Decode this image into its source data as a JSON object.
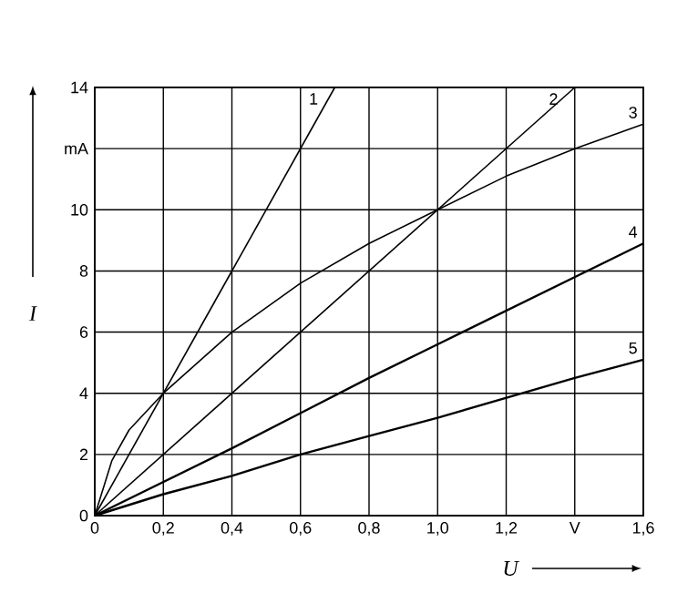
{
  "chart_data": {
    "type": "line",
    "xlabel": "U",
    "ylabel": "I",
    "series": [
      {
        "name": "1",
        "color": "#000000",
        "x": [
          0,
          0.7
        ],
        "values": [
          0,
          14
        ]
      },
      {
        "name": "2",
        "color": "#000000",
        "x": [
          0,
          1.4
        ],
        "values": [
          0,
          14
        ]
      },
      {
        "name": "3",
        "color": "#000000",
        "x": [
          0,
          0.05,
          0.1,
          0.2,
          0.4,
          0.6,
          0.8,
          1.0,
          1.2,
          1.4,
          1.6
        ],
        "values": [
          0,
          1.8,
          2.8,
          4,
          6,
          7.6,
          8.9,
          10,
          11.1,
          12,
          12.8
        ]
      },
      {
        "name": "4",
        "color": "#000000",
        "x": [
          0,
          0.2,
          0.4,
          0.6,
          0.8,
          1.0,
          1.2,
          1.4,
          1.6
        ],
        "values": [
          0,
          1.1,
          2.2,
          3.35,
          4.5,
          5.6,
          6.7,
          7.8,
          8.9
        ]
      },
      {
        "name": "5",
        "color": "#000000",
        "x": [
          0,
          0.2,
          0.4,
          0.6,
          0.8,
          1.0,
          1.2,
          1.4,
          1.6
        ],
        "values": [
          0,
          0.7,
          1.3,
          2.0,
          2.6,
          3.2,
          3.85,
          4.5,
          5.1
        ]
      }
    ],
    "xlim": [
      0,
      1.6
    ],
    "ylim": [
      0,
      14
    ],
    "xticks": [
      0,
      {
        "value": 0.2,
        "label": "0,2"
      },
      {
        "value": 0.4,
        "label": "0,4"
      },
      {
        "value": 0.6,
        "label": "0,6"
      },
      {
        "value": 0.8,
        "label": "0,8"
      },
      {
        "value": 1.0,
        "label": "1,0"
      },
      {
        "value": 1.2,
        "label": "1,2"
      },
      {
        "value": 1.4,
        "label": "V"
      },
      {
        "value": 1.6,
        "label": "1,6"
      }
    ],
    "yticks": [
      0,
      2,
      4,
      6,
      8,
      10,
      {
        "value": 12,
        "label": "mA"
      },
      14
    ],
    "grid": true,
    "legend": false,
    "marker": "none",
    "line_style": "solid"
  }
}
